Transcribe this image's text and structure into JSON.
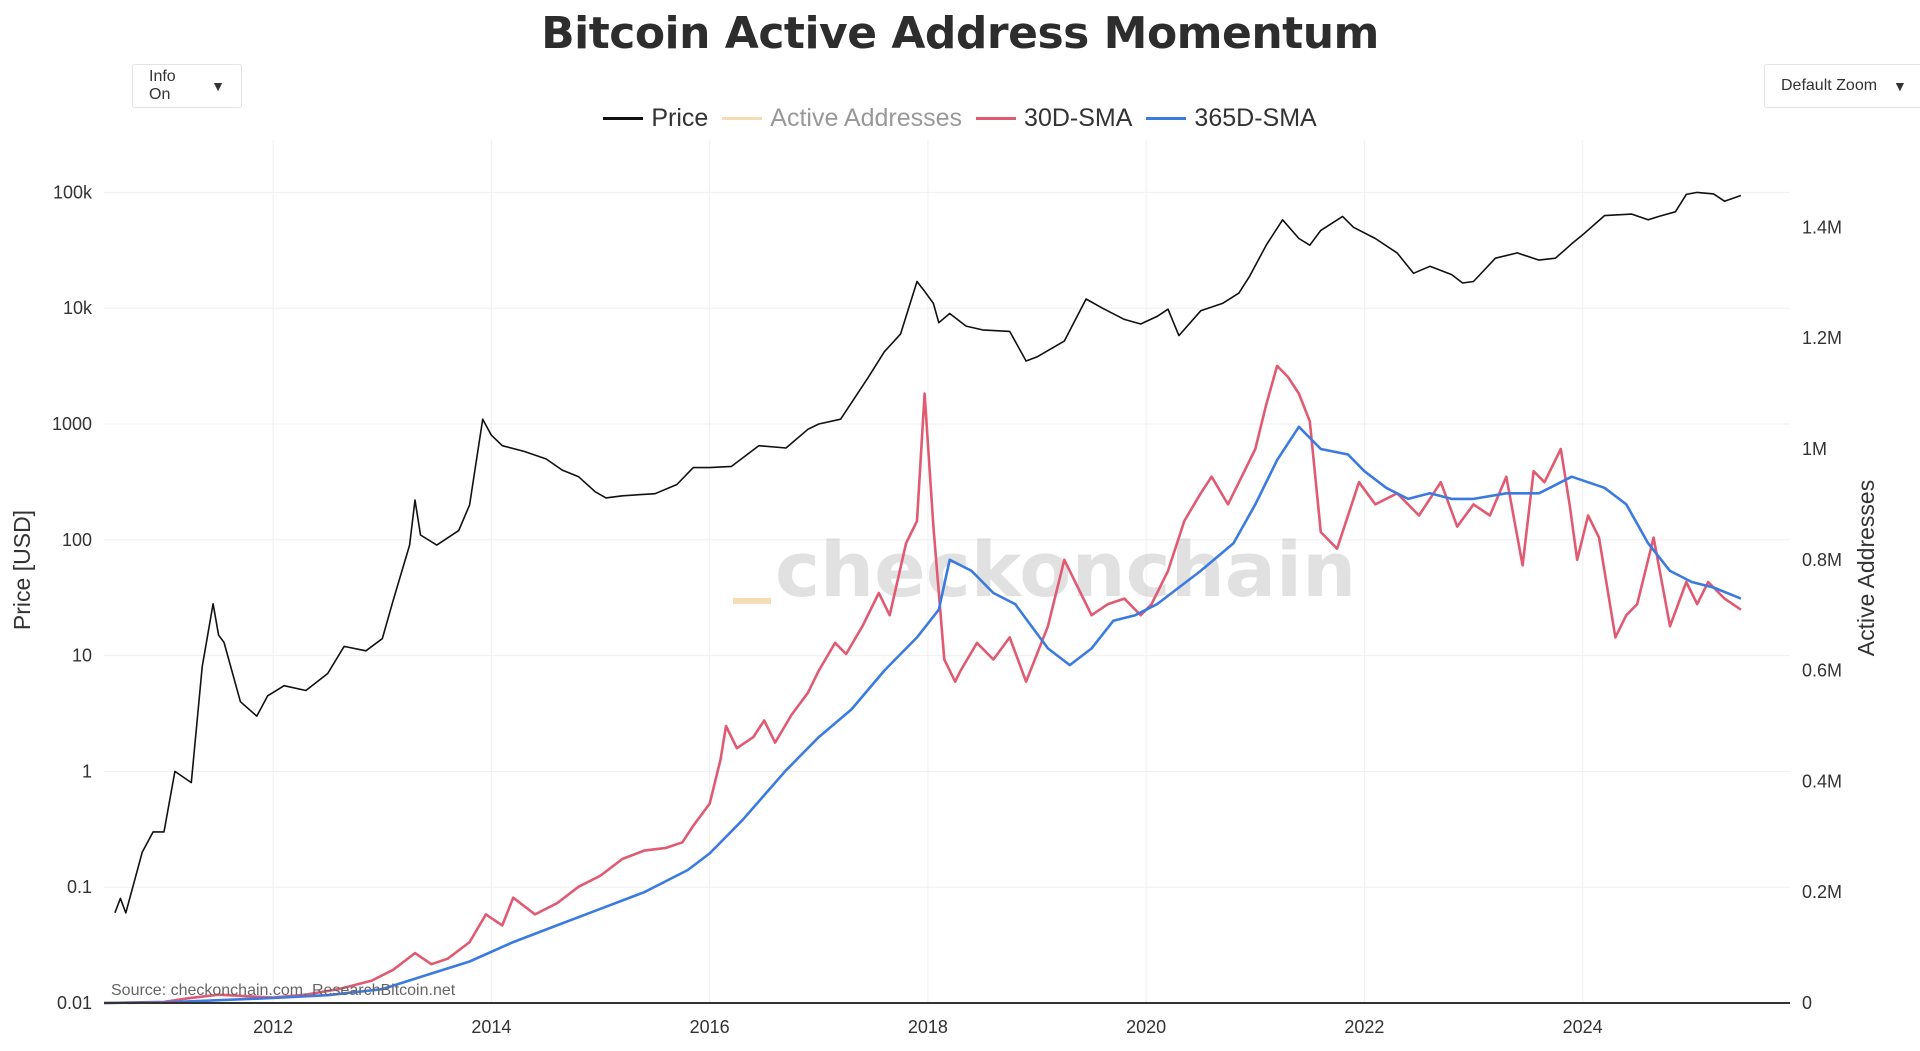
{
  "title": "Bitcoin Active Address Momentum",
  "controls": {
    "info": {
      "label": "Info On",
      "caret": "▼"
    },
    "zoom": {
      "label": "Default Zoom",
      "caret": "▼"
    }
  },
  "legend": [
    {
      "label": "Price",
      "color": "#111111",
      "hidden": false
    },
    {
      "label": "Active Addresses",
      "color": "#f6dcb6",
      "hidden": true
    },
    {
      "label": "30D-SMA",
      "color": "#e05a72",
      "hidden": false
    },
    {
      "label": "365D-SMA",
      "color": "#3b7be0",
      "hidden": false
    }
  ],
  "watermark": "checkonchain",
  "source": "Source: checkonchain.com, ResearchBitcoin.net",
  "colors": {
    "price": "#111111",
    "sma30": "#e05a72",
    "sma365": "#3b7be0",
    "watermark_bar": "#f6dcb6",
    "grid": "#efefef"
  },
  "chart_data": {
    "type": "line",
    "title": "Bitcoin Active Address Momentum",
    "x_axis": {
      "ticks": [
        "2012",
        "2014",
        "2016",
        "2018",
        "2020",
        "2022",
        "2024"
      ],
      "range": [
        2010.45,
        2025.9
      ]
    },
    "y_left": {
      "label": "Price [USD]",
      "scale": "log",
      "range": [
        0.01,
        150000
      ],
      "ticks": [
        "0.01",
        "0.1",
        "1",
        "10",
        "100",
        "1000",
        "10k",
        "100k"
      ]
    },
    "y_right": {
      "label": "Active Addresses",
      "scale": "linear",
      "range": [
        0,
        1500000
      ],
      "ticks": [
        "0",
        "0.2M",
        "0.4M",
        "0.6M",
        "0.8M",
        "1M",
        "1.2M",
        "1.4M"
      ]
    },
    "series": [
      {
        "name": "Price",
        "axis": "left",
        "color": "#111111",
        "x": [
          2010.55,
          2010.6,
          2010.65,
          2010.8,
          2010.9,
          2011.0,
          2011.1,
          2011.25,
          2011.35,
          2011.45,
          2011.5,
          2011.55,
          2011.7,
          2011.85,
          2011.95,
          2012.1,
          2012.3,
          2012.5,
          2012.65,
          2012.85,
          2013.0,
          2013.1,
          2013.25,
          2013.3,
          2013.35,
          2013.5,
          2013.7,
          2013.8,
          2013.92,
          2014.0,
          2014.1,
          2014.3,
          2014.5,
          2014.65,
          2014.8,
          2014.95,
          2015.05,
          2015.2,
          2015.5,
          2015.7,
          2015.85,
          2016.0,
          2016.2,
          2016.45,
          2016.7,
          2016.9,
          2017.0,
          2017.2,
          2017.45,
          2017.6,
          2017.75,
          2017.9,
          2017.97,
          2018.05,
          2018.1,
          2018.2,
          2018.35,
          2018.5,
          2018.75,
          2018.9,
          2019.0,
          2019.25,
          2019.45,
          2019.6,
          2019.8,
          2019.95,
          2020.1,
          2020.2,
          2020.3,
          2020.5,
          2020.7,
          2020.85,
          2020.95,
          2021.1,
          2021.25,
          2021.4,
          2021.5,
          2021.6,
          2021.8,
          2021.9,
          2022.1,
          2022.3,
          2022.45,
          2022.6,
          2022.8,
          2022.9,
          2023.0,
          2023.2,
          2023.4,
          2023.6,
          2023.75,
          2023.9,
          2024.0,
          2024.2,
          2024.45,
          2024.6,
          2024.7,
          2024.85,
          2024.95,
          2025.05,
          2025.2,
          2025.3,
          2025.45
        ],
        "y": [
          0.06,
          0.08,
          0.06,
          0.2,
          0.3,
          0.3,
          1.0,
          0.8,
          8,
          28,
          15,
          13,
          4,
          3,
          4.5,
          5.5,
          5,
          7,
          12,
          11,
          14,
          30,
          90,
          220,
          110,
          90,
          120,
          200,
          1100,
          800,
          650,
          580,
          500,
          400,
          350,
          260,
          230,
          240,
          250,
          300,
          420,
          420,
          430,
          650,
          620,
          900,
          1000,
          1100,
          2500,
          4200,
          6000,
          17000,
          14000,
          11000,
          7500,
          9000,
          7000,
          6500,
          6300,
          3500,
          3800,
          5200,
          12000,
          10000,
          8000,
          7300,
          8500,
          9800,
          5800,
          9500,
          11000,
          13500,
          19000,
          35000,
          58000,
          40000,
          35000,
          47000,
          62000,
          50000,
          40000,
          30000,
          20000,
          23000,
          19500,
          16500,
          17000,
          27000,
          30000,
          26000,
          27000,
          36000,
          43000,
          63000,
          65000,
          58000,
          62000,
          68000,
          96000,
          100000,
          97000,
          84000,
          94000
        ]
      },
      {
        "name": "30D-SMA",
        "axis": "right",
        "color": "#e05a72",
        "x": [
          2010.45,
          2011.0,
          2011.2,
          2011.5,
          2011.8,
          2012.0,
          2012.3,
          2012.6,
          2012.9,
          2013.1,
          2013.3,
          2013.45,
          2013.6,
          2013.8,
          2013.95,
          2014.1,
          2014.2,
          2014.4,
          2014.6,
          2014.8,
          2015.0,
          2015.2,
          2015.4,
          2015.6,
          2015.75,
          2015.85,
          2016.0,
          2016.1,
          2016.15,
          2016.25,
          2016.4,
          2016.5,
          2016.6,
          2016.75,
          2016.9,
          2017.0,
          2017.15,
          2017.25,
          2017.4,
          2017.55,
          2017.65,
          2017.8,
          2017.9,
          2017.97,
          2018.05,
          2018.15,
          2018.25,
          2018.3,
          2018.45,
          2018.6,
          2018.75,
          2018.9,
          2019.1,
          2019.25,
          2019.35,
          2019.5,
          2019.65,
          2019.8,
          2019.95,
          2020.05,
          2020.2,
          2020.35,
          2020.5,
          2020.6,
          2020.75,
          2020.9,
          2021.0,
          2021.1,
          2021.2,
          2021.3,
          2021.4,
          2021.5,
          2021.6,
          2021.75,
          2021.95,
          2022.1,
          2022.3,
          2022.5,
          2022.7,
          2022.85,
          2023.0,
          2023.15,
          2023.3,
          2023.45,
          2023.55,
          2023.65,
          2023.8,
          2023.88,
          2023.95,
          2024.05,
          2024.15,
          2024.3,
          2024.4,
          2024.5,
          2024.65,
          2024.8,
          2024.95,
          2025.05,
          2025.15,
          2025.3,
          2025.45
        ],
        "y": [
          0,
          2000,
          8000,
          15000,
          12000,
          10000,
          15000,
          25000,
          40000,
          60000,
          90000,
          70000,
          80000,
          110000,
          160000,
          140000,
          190000,
          160000,
          180000,
          210000,
          230000,
          260000,
          275000,
          280000,
          290000,
          320000,
          360000,
          440000,
          500000,
          460000,
          480000,
          510000,
          470000,
          520000,
          560000,
          600000,
          650000,
          630000,
          680000,
          740000,
          700000,
          830000,
          870000,
          1100000,
          860000,
          620000,
          580000,
          600000,
          650000,
          620000,
          660000,
          580000,
          680000,
          800000,
          760000,
          700000,
          720000,
          730000,
          700000,
          720000,
          780000,
          870000,
          920000,
          950000,
          900000,
          960000,
          1000000,
          1080000,
          1150000,
          1130000,
          1100000,
          1050000,
          850000,
          820000,
          940000,
          900000,
          920000,
          880000,
          940000,
          860000,
          900000,
          880000,
          950000,
          790000,
          960000,
          940000,
          1000000,
          900000,
          800000,
          880000,
          840000,
          660000,
          700000,
          720000,
          840000,
          680000,
          760000,
          720000,
          760000,
          730000,
          710000
        ]
      },
      {
        "name": "365D-SMA",
        "axis": "right",
        "color": "#3b7be0",
        "x": [
          2010.45,
          2011.0,
          2011.5,
          2012.0,
          2012.5,
          2013.0,
          2013.4,
          2013.8,
          2014.2,
          2014.6,
          2015.0,
          2015.4,
          2015.8,
          2016.0,
          2016.3,
          2016.7,
          2017.0,
          2017.3,
          2017.6,
          2017.9,
          2018.1,
          2018.2,
          2018.4,
          2018.6,
          2018.8,
          2019.1,
          2019.3,
          2019.5,
          2019.7,
          2019.9,
          2020.1,
          2020.3,
          2020.5,
          2020.8,
          2021.0,
          2021.2,
          2021.4,
          2021.6,
          2021.85,
          2022.0,
          2022.2,
          2022.4,
          2022.6,
          2022.8,
          2023.0,
          2023.3,
          2023.6,
          2023.9,
          2024.2,
          2024.4,
          2024.6,
          2024.8,
          2025.0,
          2025.2,
          2025.45
        ],
        "y": [
          0,
          1000,
          5000,
          9000,
          14000,
          25000,
          50000,
          75000,
          110000,
          140000,
          170000,
          200000,
          240000,
          270000,
          330000,
          420000,
          480000,
          530000,
          600000,
          660000,
          710000,
          800000,
          780000,
          740000,
          720000,
          640000,
          610000,
          640000,
          690000,
          700000,
          720000,
          750000,
          780000,
          830000,
          900000,
          980000,
          1040000,
          1000000,
          990000,
          960000,
          930000,
          910000,
          920000,
          910000,
          910000,
          920000,
          920000,
          950000,
          930000,
          900000,
          830000,
          780000,
          760000,
          750000,
          730000
        ]
      }
    ]
  }
}
